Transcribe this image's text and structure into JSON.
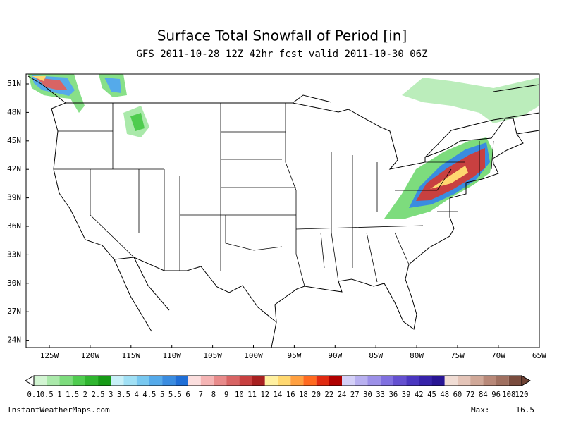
{
  "header": {
    "title": "Surface Total Snowfall of Period [in]",
    "subtitle": "GFS 2011-10-28 12Z 42hr fcst valid 2011-10-30 06Z"
  },
  "map": {
    "lat_labels": [
      "51N",
      "48N",
      "45N",
      "42N",
      "39N",
      "36N",
      "33N",
      "30N",
      "27N",
      "24N"
    ],
    "lon_labels": [
      "125W",
      "120W",
      "115W",
      "110W",
      "105W",
      "100W",
      "95W",
      "90W",
      "85W",
      "80W",
      "75W",
      "70W",
      "65W"
    ]
  },
  "colorbar": {
    "labels": [
      "0.1",
      "0.5",
      "1",
      "1.5",
      "2",
      "2.5",
      "3",
      "3.5",
      "4",
      "4.5",
      "5",
      "5.5",
      "6",
      "7",
      "8",
      "9",
      "10",
      "11",
      "12",
      "14",
      "16",
      "18",
      "20",
      "22",
      "24",
      "27",
      "30",
      "33",
      "36",
      "39",
      "42",
      "45",
      "48",
      "60",
      "72",
      "84",
      "96",
      "108",
      "120"
    ],
    "colors": [
      "#d2f5d2",
      "#aae9aa",
      "#7ddc7d",
      "#4fcc4f",
      "#2fb52f",
      "#169a16",
      "#c8f0f8",
      "#a0e0f5",
      "#78c8f0",
      "#55aaea",
      "#3a8ce0",
      "#1f6ed6",
      "#fbdede",
      "#f5b4b4",
      "#e88a8a",
      "#d86464",
      "#c84040",
      "#a82020",
      "#fff0a0",
      "#ffd870",
      "#ffa040",
      "#ff6a20",
      "#e02a10",
      "#b00000",
      "#d4d0f8",
      "#b8b0f0",
      "#9c90e8",
      "#8070e0",
      "#6450d0",
      "#4a36c0",
      "#3622aa",
      "#281594",
      "#f0dcd4",
      "#e4c4b8",
      "#d0a898",
      "#b88878",
      "#a07060",
      "#7a4c3e"
    ],
    "under_color": "#ffffff",
    "over_color": "#6e4234"
  },
  "footer": {
    "source": "InstantWeatherMaps.com",
    "max_label": "Max:",
    "max_value": "16.5"
  }
}
